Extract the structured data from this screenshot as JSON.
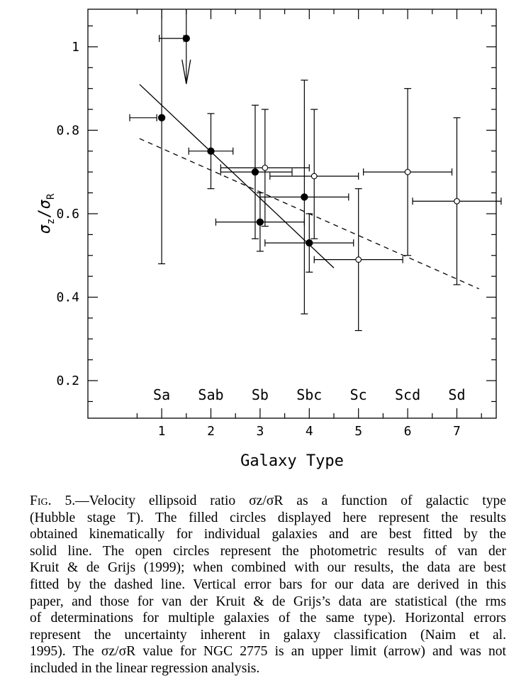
{
  "chart_data": {
    "type": "scatter",
    "title": "",
    "xlabel": "Galaxy Type",
    "ylabel": "σz/σR",
    "ylabel_parts": {
      "sym1": "σ",
      "sub1": "z",
      "slash": "/",
      "sym2": "σ",
      "sub2": "R"
    },
    "xlim": [
      -0.5,
      7.8
    ],
    "ylim": [
      0.11,
      1.09
    ],
    "x_ticks": [
      1,
      2,
      3,
      4,
      5,
      6,
      7
    ],
    "x_tick_labels": [
      "1",
      "2",
      "3",
      "4",
      "5",
      "6",
      "7"
    ],
    "y_ticks": [
      0.2,
      0.4,
      0.6,
      0.8,
      1.0
    ],
    "y_tick_labels": [
      "0.2",
      "0.4",
      "0.6",
      "0.8",
      "1"
    ],
    "type_labels": [
      {
        "x": 1,
        "text": "Sa"
      },
      {
        "x": 2,
        "text": "Sab"
      },
      {
        "x": 3,
        "text": "Sb"
      },
      {
        "x": 4,
        "text": "Sbc"
      },
      {
        "x": 5,
        "text": "Sc"
      },
      {
        "x": 6,
        "text": "Scd"
      },
      {
        "x": 7,
        "text": "Sd"
      }
    ],
    "grid": false,
    "series": [
      {
        "marker": "filled-circle",
        "points": [
          {
            "x": 1.5,
            "y": 1.02,
            "xerr": [
              0.95,
              1.45
            ],
            "yerr": [
              null,
              null
            ],
            "upper_limit": true
          },
          {
            "x": 1.0,
            "y": 0.83,
            "xerr": [
              0.35,
              0.9
            ],
            "yerr": [
              0.48,
              1.18
            ]
          },
          {
            "x": 2.0,
            "y": 0.75,
            "xerr": [
              1.55,
              2.45
            ],
            "yerr": [
              0.66,
              0.84
            ]
          },
          {
            "x": 2.9,
            "y": 0.7,
            "xerr": [
              2.2,
              3.65
            ],
            "yerr": [
              0.54,
              0.86
            ]
          },
          {
            "x": 3.0,
            "y": 0.58,
            "xerr": [
              2.1,
              3.9
            ],
            "yerr": [
              0.51,
              0.65
            ]
          },
          {
            "x": 3.9,
            "y": 0.64,
            "xerr": [
              3.0,
              4.8
            ],
            "yerr": [
              0.36,
              0.92
            ]
          },
          {
            "x": 4.0,
            "y": 0.53,
            "xerr": [
              3.1,
              4.9
            ],
            "yerr": [
              0.46,
              0.6
            ]
          }
        ]
      },
      {
        "marker": "open-circle",
        "points": [
          {
            "x": 3.1,
            "y": 0.71,
            "xerr": [
              2.2,
              4.0
            ],
            "yerr": [
              0.57,
              0.85
            ]
          },
          {
            "x": 4.1,
            "y": 0.69,
            "xerr": [
              3.2,
              5.0
            ],
            "yerr": [
              0.54,
              0.85
            ]
          },
          {
            "x": 5.0,
            "y": 0.49,
            "xerr": [
              4.1,
              5.9
            ],
            "yerr": [
              0.32,
              0.66
            ]
          },
          {
            "x": 6.0,
            "y": 0.7,
            "xerr": [
              5.1,
              6.9
            ],
            "yerr": [
              0.5,
              0.9
            ]
          },
          {
            "x": 7.0,
            "y": 0.63,
            "xerr": [
              6.1,
              7.9
            ],
            "yerr": [
              0.43,
              0.83
            ]
          }
        ]
      }
    ],
    "fit_lines": [
      {
        "style": "solid",
        "x": [
          0.55,
          4.5
        ],
        "y": [
          0.91,
          0.47
        ]
      },
      {
        "style": "dashed",
        "x": [
          0.55,
          7.45
        ],
        "y": [
          0.78,
          0.42
        ]
      }
    ]
  },
  "caption": {
    "label": "Fig. 5.",
    "lines": [
      "—Velocity ellipsoid ratio σz/σR as a function of galactic type",
      "(Hubble stage T). The filled circles displayed here represent the results",
      "obtained kinematically for individual galaxies and are best fitted by the",
      "solid line. The open circles represent the photometric results of van der",
      "Kruit & de Grijs (1999); when combined with our results, the data are best",
      "fitted by the dashed line. Vertical error bars for our data are derived in this",
      "paper, and those for van der Kruit & de Grijs’s data are statistical (the rms",
      "of determinations for multiple galaxies of the same type). Horizontal errors",
      "represent the uncertainty inherent in galaxy classification (Naim et al.",
      "1995). The σz/σR value for NGC 2775 is an upper limit (arrow) and was not",
      "included in the linear regression analysis."
    ]
  }
}
